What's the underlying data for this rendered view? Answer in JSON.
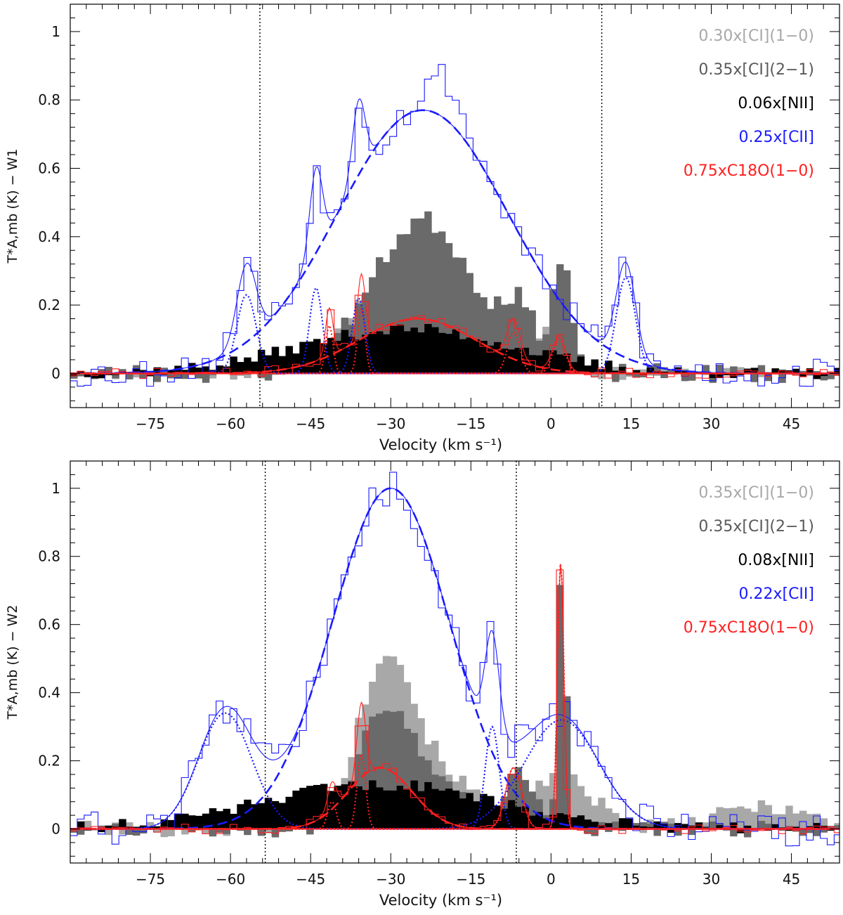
{
  "chart_data": [
    {
      "type": "line",
      "panel": "W1",
      "xlabel": "Velocity (km s⁻¹)",
      "ylabel": "T*A,mb (K) − W1",
      "xlim": [
        -90,
        54
      ],
      "ylim": [
        -0.1,
        1.08
      ],
      "xticks": [
        -75,
        -60,
        -45,
        -30,
        -15,
        0,
        15,
        30,
        45
      ],
      "xtick_labels": [
        "−75",
        "−60",
        "−45",
        "−30",
        "−15",
        "0",
        "15",
        "30",
        "45"
      ],
      "yticks": [
        0,
        0.2,
        0.4,
        0.6,
        0.8,
        1
      ],
      "ytick_labels": [
        "0",
        "0.2",
        "0.4",
        "0.6",
        "0.8",
        "1"
      ],
      "vlines": [
        -54.5,
        9.5
      ],
      "legend_position": "top-right",
      "legend": [
        {
          "text": "0.30x[CI](1−0)",
          "color": "#a8a8a8"
        },
        {
          "text": "0.35x[CI](2−1)",
          "color": "#5a5a5a"
        },
        {
          "text": "0.06x[NII]",
          "color": "#000000"
        },
        {
          "text": "0.25x[CII]",
          "color": "#1a1aff"
        },
        {
          "text": "0.75xC18O(1−0)",
          "color": "#ff2020"
        }
      ],
      "series": [
        {
          "name": "0.30x[CI](1−0)",
          "style": "filled-step",
          "color": "#a8a8a8",
          "profile": {
            "base": [
              [
                -27,
                0.33,
                9
              ],
              [
                -5,
                0.12,
                3
              ],
              [
                2,
                0.22,
                2
              ]
            ],
            "noise": 0.02,
            "seed": 11
          }
        },
        {
          "name": "0.35x[CI](2−1)",
          "style": "filled-step",
          "color": "#6a6a6a",
          "profile": {
            "base": [
              [
                -24,
                0.45,
                9.5
              ],
              [
                2,
                0.32,
                1.8
              ],
              [
                -6,
                0.15,
                3
              ]
            ],
            "noise": 0.03,
            "seed": 23
          }
        },
        {
          "name": "0.06x[NII]",
          "style": "filled-step",
          "color": "#000000",
          "profile": {
            "base": [
              [
                -27,
                0.13,
                20
              ]
            ],
            "noise": 0.018,
            "seed": 37
          }
        },
        {
          "name": "0.25x[CII]",
          "style": "step",
          "color": "#1a1aff",
          "profile": {
            "base": [
              [
                -24,
                0.77,
                16
              ],
              [
                -57,
                0.23,
                1.8
              ],
              [
                -44,
                0.25,
                1.2
              ],
              [
                -36,
                0.22,
                1.2
              ],
              [
                14,
                0.28,
                1.8
              ],
              [
                -20,
                0.12,
                3
              ]
            ],
            "noise": 0.045,
            "seed": 53
          }
        },
        {
          "name": "0.75xC18O(1−0)",
          "style": "step",
          "color": "#ff2020",
          "profile": {
            "base": [
              [
                -25,
                0.16,
                11
              ],
              [
                -41.5,
                0.14,
                0.7
              ],
              [
                -35.5,
                0.19,
                0.7
              ],
              [
                -7,
                0.12,
                1.2
              ],
              [
                1.5,
                0.1,
                1.2
              ]
            ],
            "noise": 0.015,
            "seed": 71
          }
        }
      ],
      "fits": [
        {
          "color": "#1a1aff",
          "style": "dashed",
          "gaussians": [
            [
              -24,
              0.77,
              16
            ]
          ]
        },
        {
          "color": "#1a1aff",
          "style": "dotted",
          "gaussians": [
            [
              -57,
              0.23,
              1.8
            ]
          ]
        },
        {
          "color": "#1a1aff",
          "style": "dotted",
          "gaussians": [
            [
              -44,
              0.25,
              1.2
            ]
          ]
        },
        {
          "color": "#1a1aff",
          "style": "dotted",
          "gaussians": [
            [
              -36,
              0.22,
              1.2
            ]
          ]
        },
        {
          "color": "#1a1aff",
          "style": "dotted",
          "gaussians": [
            [
              14,
              0.28,
              1.8
            ]
          ]
        },
        {
          "color": "#1a1aff",
          "style": "solid",
          "gaussians": [
            [
              -24,
              0.77,
              16
            ],
            [
              -57,
              0.23,
              1.8
            ],
            [
              -44,
              0.25,
              1.2
            ],
            [
              -36,
              0.22,
              1.2
            ],
            [
              14,
              0.28,
              1.8
            ]
          ]
        },
        {
          "color": "#ff2020",
          "style": "dashed",
          "gaussians": [
            [
              -25,
              0.16,
              11
            ]
          ]
        },
        {
          "color": "#ff2020",
          "style": "dotted",
          "gaussians": [
            [
              -41.5,
              0.14,
              0.7
            ]
          ]
        },
        {
          "color": "#ff2020",
          "style": "dotted",
          "gaussians": [
            [
              -35.5,
              0.19,
              0.7
            ]
          ]
        },
        {
          "color": "#ff2020",
          "style": "dotted",
          "gaussians": [
            [
              -7,
              0.12,
              1.2
            ]
          ]
        },
        {
          "color": "#ff2020",
          "style": "dotted",
          "gaussians": [
            [
              1.5,
              0.1,
              1.2
            ]
          ]
        },
        {
          "color": "#ff2020",
          "style": "solid",
          "gaussians": [
            [
              -25,
              0.16,
              11
            ],
            [
              -41.5,
              0.14,
              0.7
            ],
            [
              -35.5,
              0.19,
              0.7
            ],
            [
              -7,
              0.12,
              1.2
            ],
            [
              1.5,
              0.1,
              1.2
            ]
          ]
        }
      ]
    },
    {
      "type": "line",
      "panel": "W2",
      "xlabel": "Velocity (km s⁻¹)",
      "ylabel": "T*A,mb (K) − W2",
      "xlim": [
        -90,
        54
      ],
      "ylim": [
        -0.1,
        1.08
      ],
      "xticks": [
        -75,
        -60,
        -45,
        -30,
        -15,
        0,
        15,
        30,
        45
      ],
      "xtick_labels": [
        "−75",
        "−60",
        "−45",
        "−30",
        "−15",
        "0",
        "15",
        "30",
        "45"
      ],
      "yticks": [
        0,
        0.2,
        0.4,
        0.6,
        0.8,
        1
      ],
      "ytick_labels": [
        "0",
        "0.2",
        "0.4",
        "0.6",
        "0.8",
        "1"
      ],
      "vlines": [
        -53.5,
        -6.5
      ],
      "legend_position": "top-right",
      "legend": [
        {
          "text": "0.35x[CI](1−0)",
          "color": "#a8a8a8"
        },
        {
          "text": "0.35x[CI](2−1)",
          "color": "#5a5a5a"
        },
        {
          "text": "0.08x[NII]",
          "color": "#000000"
        },
        {
          "text": "0.22x[CII]",
          "color": "#1a1aff"
        },
        {
          "text": "0.75xC18O(1−0)",
          "color": "#ff2020"
        }
      ],
      "series": [
        {
          "name": "0.35x[CI](1−0)",
          "style": "filled-step",
          "color": "#a8a8a8",
          "profile": {
            "base": [
              [
                -31,
                0.5,
                5
              ],
              [
                -20,
                0.15,
                6
              ],
              [
                2,
                0.15,
                6
              ],
              [
                40,
                0.07,
                8
              ]
            ],
            "noise": 0.025,
            "seed": 101
          }
        },
        {
          "name": "0.35x[CI](2−1)",
          "style": "filled-step",
          "color": "#6a6a6a",
          "profile": {
            "base": [
              [
                -31,
                0.35,
                5
              ],
              [
                -20,
                0.1,
                6
              ],
              [
                2,
                0.8,
                0.8
              ],
              [
                -6,
                0.15,
                3
              ]
            ],
            "noise": 0.025,
            "seed": 131
          }
        },
        {
          "name": "0.08x[NII]",
          "style": "filled-step",
          "color": "#000000",
          "profile": {
            "base": [
              [
                -32,
                0.13,
                22
              ]
            ],
            "noise": 0.018,
            "seed": 151
          }
        },
        {
          "name": "0.22x[CII]",
          "style": "step",
          "color": "#1a1aff",
          "profile": {
            "base": [
              [
                -30,
                1.0,
                11
              ],
              [
                -61,
                0.34,
                5
              ],
              [
                -11,
                0.3,
                1.3
              ],
              [
                2,
                0.32,
                7
              ]
            ],
            "noise": 0.05,
            "seed": 171
          }
        },
        {
          "name": "0.75xC18O(1−0)",
          "style": "step",
          "color": "#ff2020",
          "profile": {
            "base": [
              [
                -32,
                0.18,
                6
              ],
              [
                -41,
                0.08,
                0.8
              ],
              [
                -35.5,
                0.22,
                0.8
              ],
              [
                -7,
                0.18,
                1.5
              ],
              [
                1.8,
                0.78,
                0.6
              ]
            ],
            "noise": 0.015,
            "seed": 191
          }
        }
      ],
      "fits": [
        {
          "color": "#1a1aff",
          "style": "dashed",
          "gaussians": [
            [
              -30,
              1.0,
              11
            ]
          ]
        },
        {
          "color": "#1a1aff",
          "style": "dotted",
          "gaussians": [
            [
              -61,
              0.34,
              5
            ]
          ]
        },
        {
          "color": "#1a1aff",
          "style": "dotted",
          "gaussians": [
            [
              -11,
              0.3,
              1.3
            ]
          ]
        },
        {
          "color": "#1a1aff",
          "style": "dotted",
          "gaussians": [
            [
              2,
              0.32,
              7
            ]
          ]
        },
        {
          "color": "#1a1aff",
          "style": "solid",
          "gaussians": [
            [
              -30,
              1.0,
              11
            ],
            [
              -61,
              0.34,
              5
            ],
            [
              -11,
              0.3,
              1.3
            ],
            [
              2,
              0.32,
              7
            ]
          ]
        },
        {
          "color": "#ff2020",
          "style": "dashed",
          "gaussians": [
            [
              -32,
              0.18,
              6
            ]
          ]
        },
        {
          "color": "#ff2020",
          "style": "dotted",
          "gaussians": [
            [
              -41,
              0.08,
              0.8
            ]
          ]
        },
        {
          "color": "#ff2020",
          "style": "dotted",
          "gaussians": [
            [
              -35.5,
              0.22,
              0.8
            ]
          ]
        },
        {
          "color": "#ff2020",
          "style": "dotted",
          "gaussians": [
            [
              -7,
              0.18,
              1.5
            ]
          ]
        },
        {
          "color": "#ff2020",
          "style": "dotted",
          "gaussians": [
            [
              1.8,
              0.78,
              0.6
            ]
          ]
        },
        {
          "color": "#ff2020",
          "style": "solid",
          "gaussians": [
            [
              -32,
              0.18,
              6
            ],
            [
              -41,
              0.08,
              0.8
            ],
            [
              -35.5,
              0.22,
              0.8
            ],
            [
              -7,
              0.18,
              1.5
            ],
            [
              1.8,
              0.78,
              0.6
            ]
          ]
        }
      ]
    }
  ]
}
